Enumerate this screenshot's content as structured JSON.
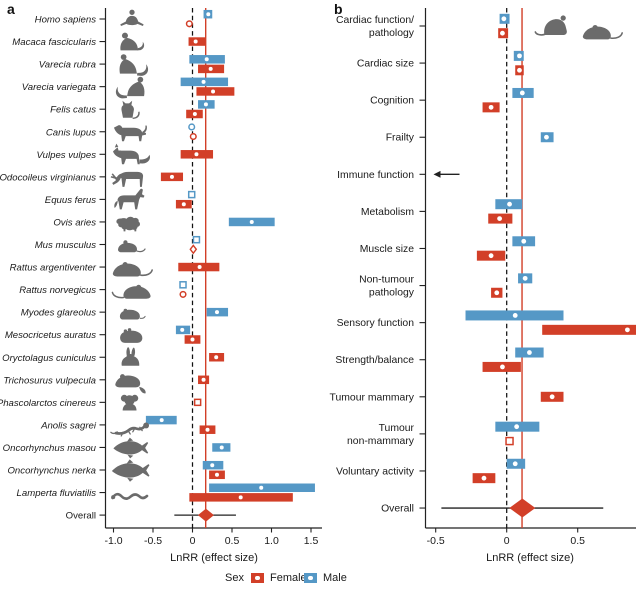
{
  "panel_letters": {
    "a": "a",
    "b": "b"
  },
  "legend": {
    "title": "Sex",
    "female_label": "Female",
    "male_label": "Male"
  },
  "colors": {
    "female": "#d23f28",
    "male": "#5598c6",
    "silhouette": "#6b6b6b",
    "axis": "#222222",
    "zero_line": "#111111",
    "text": "#1a1a1a",
    "mean_dot": "#ffffff"
  },
  "chart_data": [
    {
      "panel_letter": "a",
      "type": "forest",
      "xlabel": "LnRR (effect size)",
      "xticks": [
        {
          "v": -1.0,
          "label": "-1.0"
        },
        {
          "v": -0.5,
          "label": "-0.5"
        },
        {
          "v": 0,
          "label": "0"
        },
        {
          "v": 0.5,
          "label": "0.5"
        },
        {
          "v": 1.0,
          "label": "1.0"
        },
        {
          "v": 1.5,
          "label": "1.5"
        }
      ],
      "xlim": [
        -1.11,
        1.64
      ],
      "zero_line": 0,
      "pooled_effect": 0.167,
      "italic_labels": true,
      "rows": [
        {
          "label": "Homo sapiens",
          "icon": "human",
          "male": {
            "type": "box",
            "lo": 0.14,
            "hi": 0.25,
            "mean": 0.2
          },
          "female": {
            "type": "circle",
            "mean": -0.04
          }
        },
        {
          "label": "Macaca fascicularis",
          "icon": "macaque",
          "female": {
            "type": "box",
            "lo": -0.05,
            "hi": 0.16,
            "mean": 0.04
          }
        },
        {
          "label": "Varecia rubra",
          "icon": "lemur",
          "male": {
            "type": "box",
            "lo": -0.04,
            "hi": 0.41,
            "mean": 0.18
          },
          "female": {
            "type": "box",
            "lo": 0.07,
            "hi": 0.4,
            "mean": 0.23
          }
        },
        {
          "label": "Varecia variegata",
          "icon": "lemur2",
          "male": {
            "type": "box",
            "lo": -0.15,
            "hi": 0.45,
            "mean": 0.14
          },
          "female": {
            "type": "box",
            "lo": 0.05,
            "hi": 0.53,
            "mean": 0.26
          }
        },
        {
          "label": "Felis catus",
          "icon": "cat",
          "male": {
            "type": "box",
            "lo": 0.07,
            "hi": 0.28,
            "mean": 0.17
          },
          "female": {
            "type": "box",
            "lo": -0.08,
            "hi": 0.13,
            "mean": 0.03
          }
        },
        {
          "label": "Canis lupus",
          "icon": "dog",
          "male": {
            "type": "circle",
            "mean": -0.01
          },
          "female": {
            "type": "circle",
            "mean": 0.01
          }
        },
        {
          "label": "Vulpes vulpes",
          "icon": "fox",
          "female": {
            "type": "box",
            "lo": -0.15,
            "hi": 0.26,
            "mean": 0.05
          }
        },
        {
          "label": "Odocoileus virginianus",
          "icon": "deer",
          "female": {
            "type": "box",
            "lo": -0.4,
            "hi": -0.12,
            "mean": -0.26
          }
        },
        {
          "label": "Equus ferus",
          "icon": "horse",
          "male": {
            "type": "square",
            "mean": -0.01
          },
          "female": {
            "type": "box",
            "lo": -0.21,
            "hi": -0.01,
            "mean": -0.11
          }
        },
        {
          "label": "Ovis aries",
          "icon": "sheep",
          "male": {
            "type": "box",
            "lo": 0.46,
            "hi": 1.04,
            "mean": 0.75
          }
        },
        {
          "label": "Mus musculus",
          "icon": "mouse",
          "male": {
            "type": "square",
            "mean": 0.05
          },
          "female": {
            "type": "diamond",
            "mean": 0.01
          }
        },
        {
          "label": "Rattus argentiventer",
          "icon": "rat",
          "female": {
            "type": "box",
            "lo": -0.18,
            "hi": 0.34,
            "mean": 0.09
          }
        },
        {
          "label": "Rattus norvegicus",
          "icon": "rat2",
          "male": {
            "type": "square",
            "mean": -0.12
          },
          "female": {
            "type": "circle",
            "mean": -0.12
          }
        },
        {
          "label": "Myodes glareolus",
          "icon": "vole",
          "male": {
            "type": "box",
            "lo": 0.18,
            "hi": 0.45,
            "mean": 0.31
          }
        },
        {
          "label": "Mesocricetus auratus",
          "icon": "hamster",
          "male": {
            "type": "box",
            "lo": -0.21,
            "hi": -0.03,
            "mean": -0.13
          },
          "female": {
            "type": "box",
            "lo": -0.1,
            "hi": 0.1,
            "mean": 0.0
          }
        },
        {
          "label": "Oryctolagus cuniculus",
          "icon": "rabbit",
          "female": {
            "type": "box",
            "lo": 0.21,
            "hi": 0.4,
            "mean": 0.3
          }
        },
        {
          "label": "Trichosurus vulpecula",
          "icon": "possum",
          "female": {
            "type": "box",
            "lo": 0.07,
            "hi": 0.21,
            "mean": 0.14
          }
        },
        {
          "label": "Phascolarctos cinereus",
          "icon": "koala",
          "female": {
            "type": "square",
            "mean": 0.065
          }
        },
        {
          "label": "Anolis sagrei",
          "icon": "lizard",
          "male": {
            "type": "box",
            "lo": -0.59,
            "hi": -0.2,
            "mean": -0.39
          },
          "female": {
            "type": "box",
            "lo": 0.09,
            "hi": 0.29,
            "mean": 0.19
          }
        },
        {
          "label": "Oncorhynchus masou",
          "icon": "salmon",
          "male": {
            "type": "box",
            "lo": 0.25,
            "hi": 0.48,
            "mean": 0.37
          }
        },
        {
          "label": "Oncorhynchus nerka",
          "icon": "salmon2",
          "male": {
            "type": "box",
            "lo": 0.13,
            "hi": 0.39,
            "mean": 0.25
          },
          "female": {
            "type": "box",
            "lo": 0.21,
            "hi": 0.41,
            "mean": 0.31
          }
        },
        {
          "label": "Lamperta fluviatilis",
          "icon": "lamprey",
          "male": {
            "type": "box",
            "lo": 0.21,
            "hi": 1.55,
            "mean": 0.87
          },
          "female": {
            "type": "box",
            "lo": -0.04,
            "hi": 1.27,
            "mean": 0.61
          }
        },
        {
          "label": "Overall",
          "overall": {
            "mean": 0.17,
            "ci": [
              -0.23,
              0.55
            ]
          }
        }
      ]
    },
    {
      "panel_letter": "b",
      "type": "forest",
      "xlabel": "LnRR (effect size)",
      "xticks": [
        {
          "v": -0.5,
          "label": "-0.5"
        },
        {
          "v": 0,
          "label": "0"
        },
        {
          "v": 0.5,
          "label": "0.5"
        }
      ],
      "xlim": [
        -0.58,
        0.91
      ],
      "zero_line": 0,
      "pooled_effect": 0.108,
      "italic_labels": false,
      "rows": [
        {
          "label": [
            "Cardiac function/",
            "pathology"
          ],
          "male": {
            "type": "box",
            "lo": -0.05,
            "hi": 0.02,
            "mean": -0.02
          },
          "female": {
            "type": "box",
            "lo": -0.06,
            "hi": 0.01,
            "mean": -0.03
          }
        },
        {
          "label": "Cardiac size",
          "male": {
            "type": "box",
            "lo": 0.05,
            "hi": 0.12,
            "mean": 0.09
          },
          "female": {
            "type": "box",
            "lo": 0.06,
            "hi": 0.12,
            "mean": 0.09
          }
        },
        {
          "label": "Cognition",
          "male": {
            "type": "box",
            "lo": 0.04,
            "hi": 0.19,
            "mean": 0.11
          },
          "female": {
            "type": "box",
            "lo": -0.17,
            "hi": -0.05,
            "mean": -0.11
          }
        },
        {
          "label": "Frailty",
          "male": {
            "type": "box",
            "lo": 0.24,
            "hi": 0.33,
            "mean": 0.28
          }
        },
        {
          "label": "Immune function",
          "offscale_arrow": "left"
        },
        {
          "label": "Metabolism",
          "male": {
            "type": "box",
            "lo": -0.08,
            "hi": 0.11,
            "mean": 0.02
          },
          "female": {
            "type": "box",
            "lo": -0.13,
            "hi": 0.04,
            "mean": -0.05
          }
        },
        {
          "label": "Muscle size",
          "male": {
            "type": "box",
            "lo": 0.04,
            "hi": 0.2,
            "mean": 0.12
          },
          "female": {
            "type": "box",
            "lo": -0.21,
            "hi": -0.01,
            "mean": -0.11
          }
        },
        {
          "label": [
            "Non-tumour",
            "pathology"
          ],
          "male": {
            "type": "box",
            "lo": 0.08,
            "hi": 0.18,
            "mean": 0.13
          },
          "female": {
            "type": "box",
            "lo": -0.11,
            "hi": -0.03,
            "mean": -0.07
          }
        },
        {
          "label": "Sensory function",
          "male": {
            "type": "box",
            "lo": -0.29,
            "hi": 0.4,
            "mean": 0.06
          },
          "female": {
            "type": "box",
            "lo": 0.25,
            "hi": 0.93,
            "mean": 0.85,
            "clipped": true
          }
        },
        {
          "label": "Strength/balance",
          "male": {
            "type": "box",
            "lo": 0.06,
            "hi": 0.26,
            "mean": 0.16
          },
          "female": {
            "type": "box",
            "lo": -0.17,
            "hi": 0.1,
            "mean": -0.03
          }
        },
        {
          "label": "Tumour mammary",
          "female": {
            "type": "box",
            "lo": 0.24,
            "hi": 0.4,
            "mean": 0.32
          }
        },
        {
          "label": [
            "Tumour",
            "non-mammary"
          ],
          "male": {
            "type": "box",
            "lo": -0.08,
            "hi": 0.23,
            "mean": 0.07
          },
          "female": {
            "type": "square",
            "mean": 0.02
          }
        },
        {
          "label": "Voluntary activity",
          "male": {
            "type": "box",
            "lo": 0.0,
            "hi": 0.13,
            "mean": 0.06
          },
          "female": {
            "type": "box",
            "lo": -0.24,
            "hi": -0.08,
            "mean": -0.16
          }
        },
        {
          "label": "Overall",
          "overall": {
            "mean": 0.11,
            "ci": [
              -0.46,
              0.68
            ]
          }
        }
      ]
    }
  ]
}
